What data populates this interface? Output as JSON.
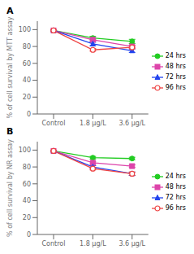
{
  "chart_data": [
    {
      "type": "line",
      "title": "A",
      "y_label": "% of cell survival by MTT assay",
      "categories": [
        "Control",
        "1.8 μg/L",
        "3.6 μg/L"
      ],
      "series": [
        {
          "name": "24 hrs",
          "color": "#22cc22",
          "marker": "circle",
          "values": [
            99,
            90,
            86
          ],
          "yerr": [
            0.8,
            2.0,
            2.5
          ]
        },
        {
          "name": "48 hrs",
          "color": "#dd44aa",
          "marker": "square",
          "values": [
            99,
            88,
            80
          ],
          "yerr": [
            0.8,
            1.5,
            1.5
          ]
        },
        {
          "name": "72 hrs",
          "color": "#2244ee",
          "marker": "triangle",
          "values": [
            99,
            83,
            75
          ],
          "yerr": [
            0.8,
            2.0,
            2.0
          ]
        },
        {
          "name": "96 hrs",
          "color": "#ee4444",
          "marker": "open_circle",
          "values": [
            99,
            76,
            79
          ],
          "yerr": [
            0.8,
            1.5,
            1.5
          ]
        }
      ],
      "ylim": [
        0,
        110
      ],
      "yticks": [
        0,
        20,
        40,
        60,
        80,
        100
      ],
      "legend": "right",
      "grid": false
    },
    {
      "type": "line",
      "title": "B",
      "y_label": "% of cell survival by NR assay",
      "categories": [
        "Control",
        "1.8 μg/L",
        "3.6 μg/L"
      ],
      "series": [
        {
          "name": "24 hrs",
          "color": "#22cc22",
          "marker": "circle",
          "values": [
            99,
            91,
            90
          ],
          "yerr": [
            0.8,
            1.5,
            1.5
          ]
        },
        {
          "name": "48 hrs",
          "color": "#dd44aa",
          "marker": "square",
          "values": [
            99,
            85,
            81
          ],
          "yerr": [
            0.8,
            1.5,
            1.5
          ]
        },
        {
          "name": "72 hrs",
          "color": "#2244ee",
          "marker": "triangle",
          "values": [
            99,
            80,
            72
          ],
          "yerr": [
            0.8,
            1.5,
            2.0
          ]
        },
        {
          "name": "96 hrs",
          "color": "#ee4444",
          "marker": "open_circle",
          "values": [
            99,
            78,
            72
          ],
          "yerr": [
            0.8,
            1.5,
            2.0
          ]
        }
      ],
      "ylim": [
        0,
        110
      ],
      "yticks": [
        0,
        20,
        40,
        60,
        80,
        100
      ],
      "legend": "right",
      "grid": false
    }
  ]
}
